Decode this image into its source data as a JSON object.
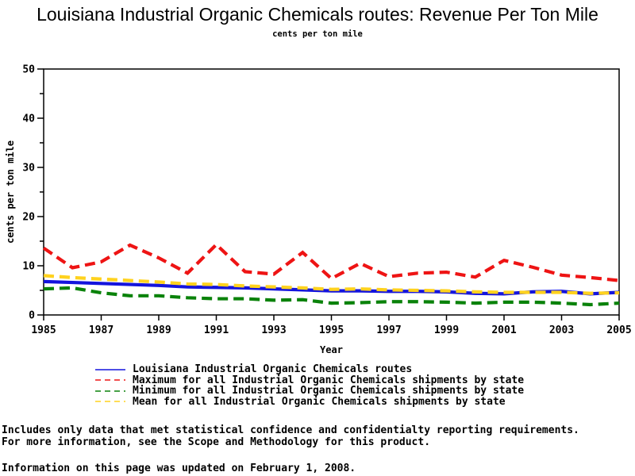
{
  "page": {
    "title": "Louisiana Industrial Organic Chemicals routes: Revenue Per Ton Mile",
    "subtitle": "cents per ton mile"
  },
  "chart_data": {
    "type": "line",
    "title": "Louisiana Industrial Organic Chemicals routes: Revenue Per Ton Mile",
    "subtitle": "cents per ton mile",
    "xlabel": "Year",
    "ylabel": "cents per ton mile",
    "xlim": [
      1985,
      2005
    ],
    "ylim": [
      0,
      50
    ],
    "xticks": [
      1985,
      1987,
      1989,
      1991,
      1993,
      1995,
      1997,
      1999,
      2001,
      2003,
      2005
    ],
    "yticks": [
      0,
      10,
      20,
      30,
      40,
      50
    ],
    "y_minor_step": 5,
    "grid": false,
    "legend_position": "bottom",
    "x": [
      1985,
      1986,
      1987,
      1988,
      1989,
      1990,
      1991,
      1992,
      1993,
      1994,
      1995,
      1996,
      1997,
      1998,
      1999,
      2000,
      2001,
      2002,
      2003,
      2004,
      2005
    ],
    "series": [
      {
        "name": "Louisiana Industrial Organic Chemicals routes",
        "color": "#1414dd",
        "style": "solid",
        "values": [
          6.8,
          6.6,
          6.4,
          6.2,
          6.0,
          5.7,
          5.6,
          5.5,
          5.3,
          5.1,
          4.9,
          4.9,
          4.8,
          4.8,
          4.7,
          4.4,
          4.3,
          4.7,
          4.8,
          4.3,
          4.6
        ]
      },
      {
        "name": "Maximum for all Industrial Organic Chemicals shipments by state",
        "color": "#ee1414",
        "style": "dashed",
        "values": [
          13.6,
          9.6,
          10.8,
          14.2,
          11.6,
          8.5,
          14.3,
          8.8,
          8.3,
          12.7,
          7.4,
          10.5,
          7.8,
          8.5,
          8.7,
          7.7,
          11.1,
          9.7,
          8.1,
          7.6,
          7.0
        ]
      },
      {
        "name": "Minimum for all Industrial Organic Chemicals shipments by state",
        "color": "#0a820a",
        "style": "dashed",
        "values": [
          5.3,
          5.5,
          4.5,
          3.9,
          3.9,
          3.5,
          3.3,
          3.3,
          3.0,
          3.1,
          2.4,
          2.5,
          2.7,
          2.7,
          2.6,
          2.4,
          2.6,
          2.6,
          2.4,
          2.1,
          2.4
        ]
      },
      {
        "name": "Mean for all Industrial Organic Chemicals shipments by state",
        "color": "#ffd21e",
        "style": "dashed",
        "values": [
          8.0,
          7.6,
          7.3,
          7.0,
          6.7,
          6.3,
          6.2,
          5.9,
          5.7,
          5.5,
          5.2,
          5.3,
          5.1,
          5.0,
          4.9,
          4.7,
          4.6,
          4.6,
          4.6,
          4.4,
          4.5
        ]
      }
    ]
  },
  "footnotes": {
    "line1": "Includes only data that met statistical confidence and confidentialty reporting requirements.",
    "line2": "For more information, see the Scope and Methodology for this product.",
    "updated": "Information on this page was updated on February 1, 2008."
  }
}
